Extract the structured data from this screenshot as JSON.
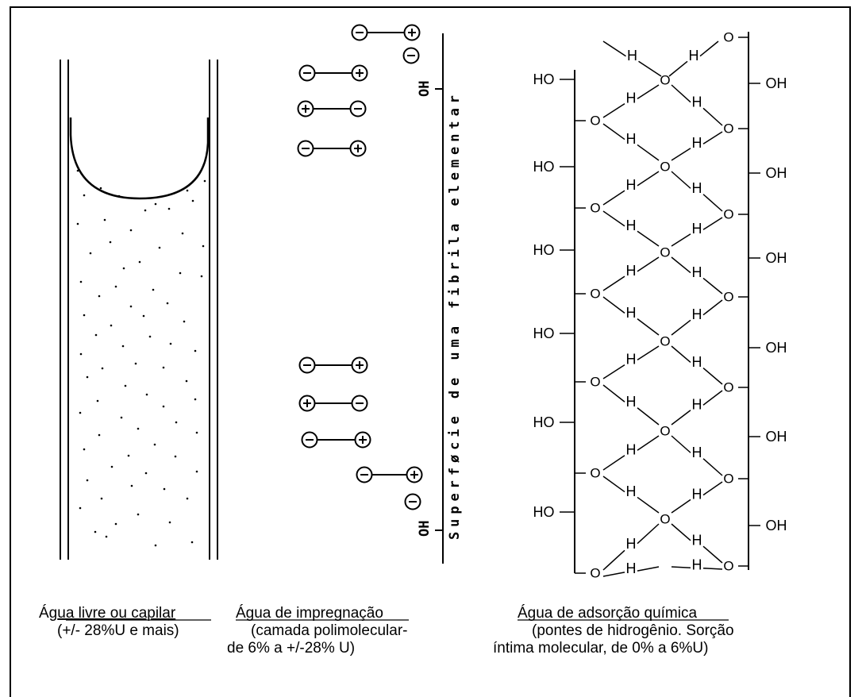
{
  "panels": {
    "free_water": {
      "title_prefix": "Ág",
      "title_underlined": "ua livre ou capilar",
      "subtitle": "(+/- 28%U e mais)"
    },
    "impregnation": {
      "title": "Água de impregnação",
      "line2": "(camada polimolecular-",
      "line3": "de 6% a +/-28% U)",
      "surface_label": "Superføcie  de uma fibrila  elementar",
      "oh_label": "OH"
    },
    "chemical": {
      "title": "Água de adsorção química",
      "line2": "(pontes de hidrogênio. Sorção",
      "line3": "íntima molecular, de 0% a 6%U)",
      "ho_label": "HO",
      "oh_label": "OH",
      "o_label": "O",
      "h_label": "H"
    }
  },
  "symbols": {
    "plus": "+",
    "minus": "−"
  },
  "colors": {
    "ink": "#000000",
    "background": "#ffffff"
  }
}
